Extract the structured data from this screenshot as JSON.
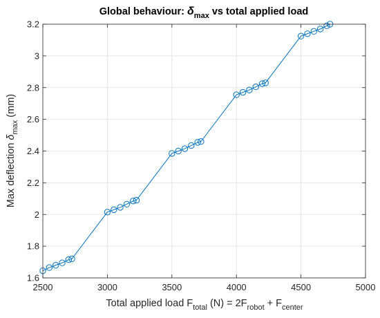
{
  "chart_data": {
    "type": "line",
    "title": {
      "prefix": "Global behaviour: ",
      "symbol": "δ",
      "symbol_sub": "max",
      "suffix": " vs total applied load"
    },
    "xlabel": {
      "prefix": "Total applied load F",
      "sub1": "total",
      "mid1": " (N) = 2F",
      "sub2": "robot",
      "mid2": " + F",
      "sub3": "center"
    },
    "ylabel": {
      "prefix": "Max deflection ",
      "symbol": "δ",
      "symbol_sub": "max",
      "suffix": " (mm)"
    },
    "xlim": [
      2500,
      5000
    ],
    "ylim": [
      1.6,
      3.2
    ],
    "xticks": [
      "2500",
      "3000",
      "3500",
      "4000",
      "4500",
      "5000"
    ],
    "yticks": [
      "1.6",
      "1.8",
      "2",
      "2.2",
      "2.4",
      "2.6",
      "2.8",
      "3",
      "3.2"
    ],
    "grid": true,
    "marker": "circle",
    "color": "#0072BD",
    "x": [
      2500,
      2550,
      2600,
      2650,
      2700,
      2725,
      3000,
      3050,
      3100,
      3150,
      3200,
      3225,
      3500,
      3550,
      3600,
      3650,
      3700,
      3725,
      4000,
      4050,
      4100,
      4150,
      4200,
      4225,
      4500,
      4550,
      4600,
      4650,
      4700,
      4725
    ],
    "y": [
      1.645,
      1.665,
      1.68,
      1.695,
      1.715,
      1.72,
      2.015,
      2.03,
      2.045,
      2.065,
      2.085,
      2.09,
      2.385,
      2.4,
      2.415,
      2.435,
      2.455,
      2.46,
      2.755,
      2.77,
      2.785,
      2.805,
      2.825,
      2.83,
      3.125,
      3.14,
      3.155,
      3.17,
      3.19,
      3.2
    ]
  }
}
